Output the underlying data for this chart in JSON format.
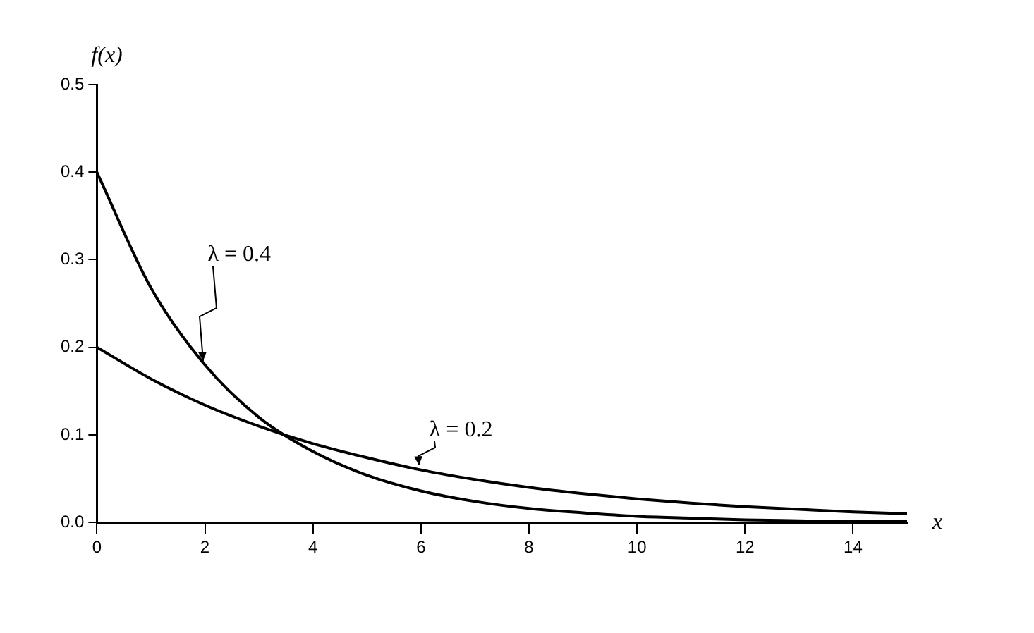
{
  "chart_data": {
    "type": "line",
    "xlabel": "x",
    "ylabel": "f(x)",
    "x": [
      0,
      1,
      2,
      3,
      4,
      5,
      6,
      7,
      8,
      9,
      10,
      11,
      12,
      13,
      14,
      15
    ],
    "xlim": [
      0,
      15
    ],
    "xticks": [
      0,
      2,
      4,
      6,
      8,
      10,
      12,
      14
    ],
    "ylim": [
      0,
      0.5
    ],
    "yticks": [
      {
        "value": 0,
        "label": "0.0"
      },
      {
        "value": 0.1,
        "label": "0.1"
      },
      {
        "value": 0.2,
        "label": "0.2"
      },
      {
        "value": 0.3,
        "label": "0.3"
      },
      {
        "value": 0.4,
        "label": "0.4"
      },
      {
        "value": 0.5,
        "label": "0.5"
      }
    ],
    "grid": false,
    "legend": false,
    "marker": "none",
    "line_style": "solid",
    "series": [
      {
        "name": "λ = 0.4",
        "color": "#000000",
        "values": [
          0.4,
          0.268,
          0.18,
          0.12,
          0.081,
          0.054,
          0.036,
          0.024,
          0.016,
          0.011,
          0.007,
          0.005,
          0.003,
          0.002,
          0.001,
          0.001
        ]
      },
      {
        "name": "λ = 0.2",
        "color": "#000000",
        "values": [
          0.2,
          0.164,
          0.134,
          0.11,
          0.09,
          0.074,
          0.06,
          0.049,
          0.04,
          0.033,
          0.027,
          0.022,
          0.018,
          0.015,
          0.012,
          0.01
        ]
      }
    ]
  }
}
